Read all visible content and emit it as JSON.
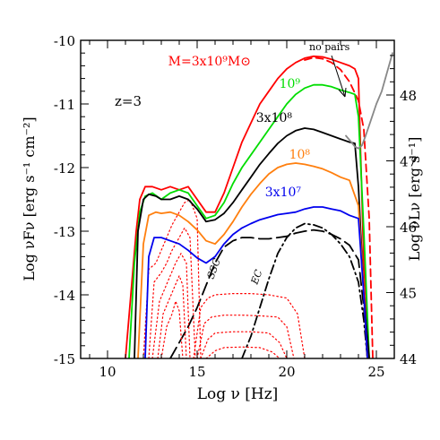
{
  "chart_data": {
    "type": "line",
    "xlabel": "Log ν [Hz]",
    "ylabel_left": "Log νFν [erg s⁻¹ cm⁻²]",
    "ylabel_right": "Log νLν [erg s⁻¹]",
    "xlim": [
      8.5,
      26
    ],
    "ylim": [
      -15,
      -10
    ],
    "ylim_right": [
      44,
      48.83
    ],
    "x_ticks": [
      10,
      15,
      20,
      25
    ],
    "y_ticks": [
      -15,
      -14,
      -13,
      -12,
      -11,
      -10
    ],
    "y_ticks_right": [
      44,
      45,
      46,
      47,
      48
    ],
    "annotations": {
      "redshift": "z=3",
      "no_pairs": "no pairs",
      "ssc": "SSC",
      "ec": "EC"
    },
    "series": [
      {
        "label": "M=3x10⁹M⊙",
        "color": "#ff0000",
        "style": "solid",
        "x": [
          11.0,
          11.3,
          11.6,
          11.8,
          12.1,
          12.5,
          13.0,
          13.5,
          14.0,
          14.5,
          15.0,
          15.5,
          16.0,
          16.5,
          17.0,
          17.5,
          18.0,
          18.5,
          19.0,
          19.5,
          20.0,
          20.5,
          21.0,
          21.5,
          22.0,
          22.5,
          23.0,
          23.5,
          23.8,
          24.0,
          24.3,
          24.6
        ],
        "y": [
          -15.0,
          -14.0,
          -13.0,
          -12.5,
          -12.3,
          -12.3,
          -12.35,
          -12.3,
          -12.35,
          -12.3,
          -12.5,
          -12.7,
          -12.7,
          -12.4,
          -12.0,
          -11.6,
          -11.3,
          -11.0,
          -10.8,
          -10.6,
          -10.45,
          -10.35,
          -10.28,
          -10.25,
          -10.26,
          -10.3,
          -10.35,
          -10.4,
          -10.45,
          -10.6,
          -13.5,
          -15.0
        ]
      },
      {
        "label": "",
        "color": "#ff0000",
        "style": "dashed",
        "x": [
          21.0,
          21.5,
          22.0,
          22.5,
          23.0,
          23.5,
          24.0,
          24.3,
          24.6,
          24.8
        ],
        "y": [
          -10.31,
          -10.27,
          -10.29,
          -10.35,
          -10.46,
          -10.65,
          -10.95,
          -11.4,
          -12.8,
          -15.0
        ]
      },
      {
        "label": "10⁹",
        "color": "#00dd00",
        "style": "solid",
        "x": [
          11.2,
          11.5,
          11.8,
          12.1,
          12.5,
          13.0,
          13.5,
          14.0,
          14.5,
          15.0,
          15.5,
          16.0,
          16.5,
          17.0,
          17.5,
          18.0,
          18.5,
          19.0,
          19.5,
          20.0,
          20.5,
          21.0,
          21.5,
          22.0,
          22.5,
          23.0,
          23.5,
          23.8,
          24.0,
          24.3,
          24.6
        ],
        "y": [
          -15.0,
          -13.5,
          -12.7,
          -12.45,
          -12.4,
          -12.5,
          -12.4,
          -12.35,
          -12.4,
          -12.6,
          -12.8,
          -12.75,
          -12.55,
          -12.25,
          -12.0,
          -11.8,
          -11.6,
          -11.4,
          -11.2,
          -11.0,
          -10.85,
          -10.75,
          -10.7,
          -10.7,
          -10.73,
          -10.78,
          -10.82,
          -10.85,
          -11.2,
          -13.0,
          -15.0
        ]
      },
      {
        "label": "3x10⁸",
        "color": "#000000",
        "style": "solid",
        "x": [
          11.5,
          11.7,
          12.0,
          12.3,
          12.7,
          13.0,
          13.5,
          14.0,
          14.5,
          15.0,
          15.5,
          16.0,
          16.5,
          17.0,
          17.5,
          18.0,
          18.5,
          19.0,
          19.5,
          20.0,
          20.5,
          21.0,
          21.5,
          22.0,
          22.5,
          23.0,
          23.5,
          23.8,
          24.0,
          24.3,
          24.6
        ],
        "y": [
          -15.0,
          -13.0,
          -12.5,
          -12.42,
          -12.45,
          -12.5,
          -12.5,
          -12.45,
          -12.5,
          -12.65,
          -12.85,
          -12.82,
          -12.72,
          -12.55,
          -12.35,
          -12.15,
          -11.95,
          -11.78,
          -11.62,
          -11.5,
          -11.42,
          -11.38,
          -11.4,
          -11.45,
          -11.5,
          -11.55,
          -11.6,
          -11.62,
          -12.3,
          -14.0,
          -15.0
        ]
      },
      {
        "label": "10⁸",
        "color": "#ff7f0e",
        "style": "solid",
        "x": [
          11.7,
          12.0,
          12.3,
          12.7,
          13.0,
          13.5,
          14.0,
          14.5,
          15.0,
          15.5,
          16.0,
          16.5,
          17.0,
          17.5,
          18.0,
          18.5,
          19.0,
          19.5,
          20.0,
          20.5,
          21.0,
          21.5,
          22.0,
          22.5,
          23.0,
          23.5,
          24.0,
          24.3,
          24.5
        ],
        "y": [
          -15.0,
          -13.2,
          -12.75,
          -12.7,
          -12.72,
          -12.7,
          -12.75,
          -12.85,
          -12.98,
          -13.15,
          -13.2,
          -13.05,
          -12.85,
          -12.62,
          -12.42,
          -12.25,
          -12.1,
          -12.0,
          -11.95,
          -11.93,
          -11.95,
          -11.98,
          -12.02,
          -12.08,
          -12.15,
          -12.2,
          -12.6,
          -14.0,
          -15.0
        ]
      },
      {
        "label": "3x10⁷",
        "color": "#0000ee",
        "style": "solid",
        "x": [
          12.1,
          12.3,
          12.6,
          13.0,
          13.5,
          14.0,
          14.5,
          15.0,
          15.5,
          16.0,
          16.5,
          17.0,
          17.5,
          18.0,
          18.5,
          19.0,
          19.5,
          20.0,
          20.5,
          21.0,
          21.5,
          22.0,
          22.5,
          23.0,
          23.5,
          24.0,
          24.3,
          24.5
        ],
        "y": [
          -15.0,
          -13.4,
          -13.1,
          -13.1,
          -13.15,
          -13.2,
          -13.3,
          -13.42,
          -13.5,
          -13.4,
          -13.2,
          -13.05,
          -12.95,
          -12.88,
          -12.82,
          -12.78,
          -12.74,
          -12.72,
          -12.7,
          -12.65,
          -12.62,
          -12.62,
          -12.65,
          -12.68,
          -12.75,
          -12.8,
          -14.0,
          -15.0
        ]
      },
      {
        "label": "",
        "color": "#888888",
        "style": "solid",
        "x": [
          23.3,
          23.6,
          23.8,
          24.0,
          24.2,
          24.4,
          24.7,
          25.0,
          25.3,
          25.6,
          25.9
        ],
        "y": [
          -11.5,
          -11.6,
          -11.67,
          -11.7,
          -11.65,
          -11.5,
          -11.25,
          -11.0,
          -10.8,
          -10.5,
          -10.2
        ]
      }
    ],
    "components": [
      {
        "label": "SSC",
        "color": "#000000",
        "style": "longdash",
        "x": [
          13.5,
          14.0,
          14.5,
          15.0,
          15.5,
          16.0,
          16.5,
          17.0,
          17.5,
          18.0,
          18.5,
          19.0,
          19.5,
          20.0,
          20.5,
          21.0,
          21.5,
          22.0,
          22.5,
          23.0,
          23.5,
          24.0,
          24.3,
          24.5
        ],
        "y": [
          -15.0,
          -14.75,
          -14.5,
          -14.2,
          -13.85,
          -13.5,
          -13.25,
          -13.15,
          -13.1,
          -13.1,
          -13.12,
          -13.12,
          -13.1,
          -13.08,
          -13.03,
          -13.0,
          -12.98,
          -13.0,
          -13.05,
          -13.12,
          -13.22,
          -13.45,
          -14.2,
          -15.0
        ]
      },
      {
        "label": "EC",
        "color": "#000000",
        "style": "dashdot",
        "x": [
          17.5,
          18.0,
          18.5,
          19.0,
          19.5,
          20.0,
          20.5,
          21.0,
          21.5,
          22.0,
          22.5,
          23.0,
          23.5,
          24.0,
          24.3,
          24.5
        ],
        "y": [
          -15.0,
          -14.65,
          -14.2,
          -13.75,
          -13.35,
          -13.1,
          -12.95,
          -12.88,
          -12.9,
          -12.95,
          -13.05,
          -13.2,
          -13.4,
          -13.8,
          -14.4,
          -15.0
        ]
      },
      {
        "label": "",
        "color": "#ff0000",
        "style": "dotted",
        "x": [
          12.0,
          12.3,
          12.7,
          13.0,
          13.3,
          13.6,
          14.0,
          14.3,
          14.6,
          15.0,
          15.2
        ],
        "y": [
          -15.0,
          -13.6,
          -13.5,
          -13.3,
          -13.1,
          -12.9,
          -12.7,
          -12.55,
          -12.5,
          -12.8,
          -15.0
        ]
      },
      {
        "label": "",
        "color": "#ff0000",
        "style": "dotted",
        "x": [
          12.3,
          12.6,
          13.0,
          13.3,
          13.6,
          14.0,
          14.3,
          14.6,
          14.9
        ],
        "y": [
          -15.0,
          -13.8,
          -13.65,
          -13.5,
          -13.3,
          -13.1,
          -12.95,
          -13.1,
          -15.0
        ]
      },
      {
        "label": "",
        "color": "#ff0000",
        "style": "dotted",
        "x": [
          12.5,
          12.9,
          13.2,
          13.5,
          13.8,
          14.1,
          14.4,
          14.6
        ],
        "y": [
          -15.0,
          -14.1,
          -13.9,
          -13.7,
          -13.5,
          -13.35,
          -13.5,
          -15.0
        ]
      },
      {
        "label": "",
        "color": "#ff0000",
        "style": "dotted",
        "x": [
          12.8,
          13.1,
          13.4,
          13.7,
          14.0,
          14.2,
          14.4
        ],
        "y": [
          -15.0,
          -14.3,
          -14.1,
          -13.9,
          -13.7,
          -13.85,
          -15.0
        ]
      },
      {
        "label": "",
        "color": "#ff0000",
        "style": "dotted",
        "x": [
          13.0,
          13.3,
          13.6,
          13.8,
          14.0,
          14.2
        ],
        "y": [
          -15.0,
          -14.5,
          -14.3,
          -14.1,
          -14.25,
          -15.0
        ]
      },
      {
        "label": "",
        "color": "#ff0000",
        "style": "dotted",
        "x": [
          14.8,
          15.2,
          15.6,
          16.0,
          17.0,
          18.0,
          19.0,
          20.0,
          20.6,
          21.0
        ],
        "y": [
          -15.0,
          -14.2,
          -14.05,
          -14.0,
          -13.98,
          -13.98,
          -14.0,
          -14.05,
          -14.3,
          -15.0
        ]
      },
      {
        "label": "",
        "color": "#ff0000",
        "style": "dotted",
        "x": [
          15.0,
          15.4,
          15.8,
          16.5,
          17.5,
          18.5,
          19.5,
          20.0,
          20.4
        ],
        "y": [
          -15.0,
          -14.45,
          -14.35,
          -14.32,
          -14.32,
          -14.33,
          -14.35,
          -14.5,
          -15.0
        ]
      },
      {
        "label": "",
        "color": "#ff0000",
        "style": "dotted",
        "x": [
          15.2,
          15.6,
          16.0,
          17.0,
          18.0,
          19.0,
          19.6,
          20.0
        ],
        "y": [
          -15.0,
          -14.7,
          -14.6,
          -14.58,
          -14.58,
          -14.6,
          -14.75,
          -15.0
        ]
      },
      {
        "label": "",
        "color": "#ff0000",
        "style": "dotted",
        "x": [
          15.5,
          16.0,
          16.5,
          17.5,
          18.5,
          19.2,
          19.6
        ],
        "y": [
          -15.0,
          -14.88,
          -14.83,
          -14.82,
          -14.83,
          -14.9,
          -15.0
        ]
      }
    ]
  }
}
